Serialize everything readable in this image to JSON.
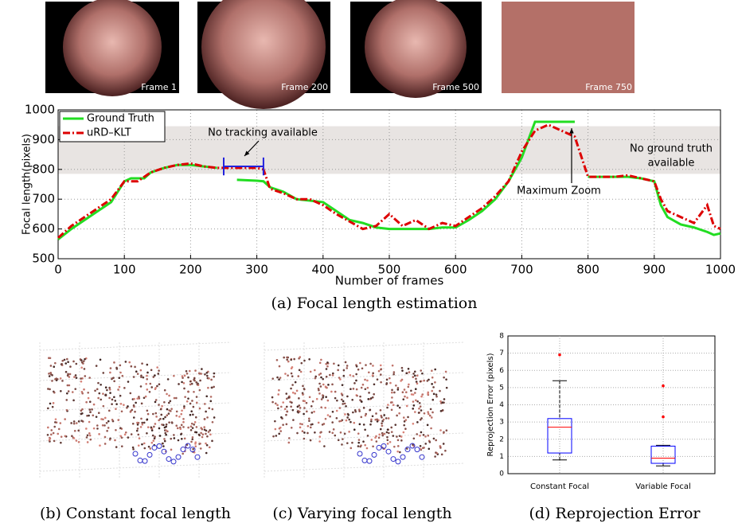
{
  "frames": [
    "Frame 1",
    "Frame 200",
    "Frame 500",
    "Frame 750"
  ],
  "captions": [
    "(a) Focal length estimation",
    "(b) Constant focal length",
    "(c) Varying focal length",
    "(d) Reprojection Error"
  ],
  "chart_data": [
    {
      "type": "line",
      "xlabel": "Number of frames",
      "ylabel": "Focal length(pixels)",
      "xlim": [
        0,
        1000
      ],
      "ylim": [
        500,
        1000
      ],
      "xticks": [
        0,
        100,
        200,
        300,
        400,
        500,
        600,
        700,
        800,
        900,
        1000
      ],
      "yticks": [
        500,
        600,
        700,
        800,
        900,
        1000
      ],
      "grid": true,
      "legend": "upper left",
      "shaded_range": [
        785,
        945
      ],
      "annotations": [
        "No tracking available",
        "Maximum Zoom",
        "No ground truth",
        "available"
      ],
      "series": [
        {
          "name": "Ground Truth",
          "color": "#22dd22",
          "x": [
            0,
            20,
            40,
            60,
            80,
            100,
            110,
            130,
            140,
            160,
            180,
            200,
            220,
            240,
            250,
            270,
            300,
            310,
            320,
            340,
            360,
            380,
            400,
            420,
            440,
            460,
            480,
            500,
            520,
            540,
            560,
            580,
            600,
            620,
            640,
            660,
            680,
            700,
            710,
            720,
            740,
            760,
            780,
            790,
            800,
            820,
            840,
            860,
            880,
            900,
            910,
            920,
            940,
            960,
            980,
            990,
            1000
          ],
          "values": [
            565,
            600,
            630,
            660,
            690,
            760,
            770,
            770,
            790,
            805,
            815,
            815,
            810,
            805,
            null,
            765,
            762,
            760,
            740,
            725,
            700,
            695,
            690,
            660,
            630,
            620,
            605,
            600,
            600,
            600,
            600,
            605,
            605,
            630,
            660,
            700,
            760,
            840,
            900,
            960,
            960,
            960,
            960,
            null,
            775,
            775,
            775,
            775,
            770,
            760,
            680,
            640,
            615,
            605,
            590,
            580,
            585
          ]
        },
        {
          "name": "uRD–KLT",
          "color": "#dd0000",
          "x": [
            0,
            20,
            40,
            60,
            80,
            100,
            120,
            140,
            160,
            180,
            200,
            220,
            240,
            260,
            280,
            300,
            310,
            320,
            340,
            360,
            380,
            400,
            420,
            440,
            460,
            480,
            500,
            520,
            540,
            560,
            580,
            600,
            620,
            640,
            660,
            680,
            700,
            720,
            740,
            760,
            780,
            800,
            820,
            840,
            860,
            880,
            900,
            910,
            920,
            940,
            960,
            980,
            990,
            1000
          ],
          "values": [
            570,
            610,
            640,
            670,
            700,
            760,
            760,
            790,
            805,
            815,
            820,
            810,
            805,
            805,
            805,
            805,
            800,
            735,
            720,
            700,
            700,
            680,
            650,
            625,
            600,
            610,
            650,
            610,
            630,
            600,
            620,
            610,
            640,
            670,
            710,
            760,
            860,
            930,
            950,
            930,
            910,
            775,
            775,
            775,
            780,
            770,
            760,
            700,
            660,
            640,
            620,
            680,
            610,
            600
          ]
        }
      ]
    },
    {
      "type": "box",
      "ylabel": "Reprojection Error (pixels)",
      "ylim": [
        0,
        8
      ],
      "yticks": [
        0,
        1,
        2,
        3,
        4,
        5,
        6,
        7,
        8
      ],
      "grid": true,
      "categories": [
        "Constant Focal",
        "Variable Focal"
      ],
      "boxes": [
        {
          "min": 0.8,
          "q1": 1.2,
          "median": 2.7,
          "q3": 3.2,
          "max": 5.4,
          "outliers": [
            6.9
          ]
        },
        {
          "min": 0.45,
          "q1": 0.6,
          "median": 0.9,
          "q3": 1.6,
          "max": 1.65,
          "outliers": [
            3.3,
            5.1
          ]
        }
      ]
    }
  ]
}
